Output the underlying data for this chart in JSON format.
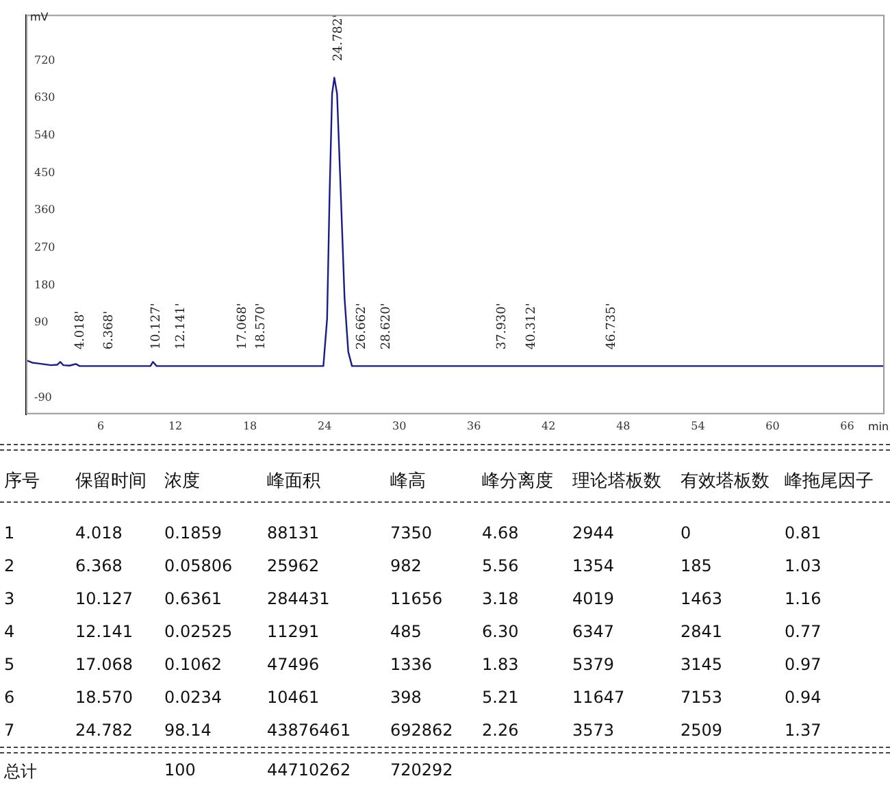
{
  "chart_data": {
    "type": "line",
    "xlabel": "min",
    "ylabel": "mV",
    "xlim": [
      0,
      69
    ],
    "ylim": [
      -130,
      830
    ],
    "xticks": [
      6,
      12,
      18,
      24,
      30,
      36,
      42,
      48,
      54,
      60,
      66
    ],
    "yticks": [
      -90,
      90,
      180,
      270,
      360,
      450,
      540,
      630,
      720
    ],
    "grid": false,
    "legend": false,
    "marker": "none",
    "line_style": "solid",
    "series": [
      {
        "color": "#1a1a8c",
        "x": [
          0,
          0.5,
          1,
          1.5,
          2,
          2.5,
          2.75,
          3,
          3.5,
          4,
          4.3,
          10,
          10.2,
          10.5,
          23.9,
          24.2,
          24.4,
          24.6,
          24.78,
          25,
          25.3,
          25.6,
          25.9,
          26.2,
          69
        ],
        "values": [
          0,
          -6,
          -8,
          -10,
          -12,
          -11,
          -4,
          -12,
          -13,
          -9,
          -14,
          -14,
          -4,
          -14,
          -14,
          100,
          400,
          640,
          679,
          640,
          400,
          150,
          20,
          -14,
          -14
        ]
      }
    ],
    "annotations": [
      {
        "text": "4.018'",
        "x": 4.018,
        "y": -14
      },
      {
        "text": "6.368'",
        "x": 6.368,
        "y": -14
      },
      {
        "text": "10.127'",
        "x": 10.127,
        "y": -14
      },
      {
        "text": "12.141'",
        "x": 12.141,
        "y": -14
      },
      {
        "text": "17.068'",
        "x": 17.068,
        "y": -14
      },
      {
        "text": "18.570'",
        "x": 18.57,
        "y": -14
      },
      {
        "text": "24.782'",
        "x": 24.78,
        "y": 679
      },
      {
        "text": "26.662'",
        "x": 26.662,
        "y": -14
      },
      {
        "text": "28.620'",
        "x": 28.62,
        "y": -14
      },
      {
        "text": "37.930'",
        "x": 37.93,
        "y": -14
      },
      {
        "text": "40.312'",
        "x": 40.312,
        "y": -14
      },
      {
        "text": "46.735'",
        "x": 46.735,
        "y": -14
      },
      "序号",
      "保留时间",
      "浓度",
      "峰面积",
      "峰高",
      "峰分离度",
      "理论塔板数",
      "有效塔板数",
      "峰拖尾因子",
      "1",
      "4.018",
      "0.1859",
      "88131",
      "7350",
      "4.68",
      "2944",
      "0",
      "0.81",
      "2",
      "6.368",
      "0.05806",
      "25962",
      "982",
      "5.56",
      "1354",
      "185",
      "1.03",
      "3",
      "10.127",
      "0.6361",
      "284431",
      "11656",
      "3.18",
      "4019",
      "1463",
      "1.16",
      "4",
      "12.141",
      "0.02525",
      "11291",
      "485",
      "6.30",
      "6347",
      "2841",
      "0.77",
      "5",
      "17.068",
      "0.1062",
      "47496",
      "1336",
      "1.83",
      "5379",
      "3145",
      "0.97",
      "6",
      "18.570",
      "0.0234",
      "10461",
      "398",
      "5.21",
      "11647",
      "7153",
      "0.94",
      "7",
      "24.782",
      "98.14",
      "43876461",
      "692862",
      "2.26",
      "3573",
      "2509",
      "1.37",
      "总计",
      "100",
      "44710262",
      "720292"
    ]
  }
}
